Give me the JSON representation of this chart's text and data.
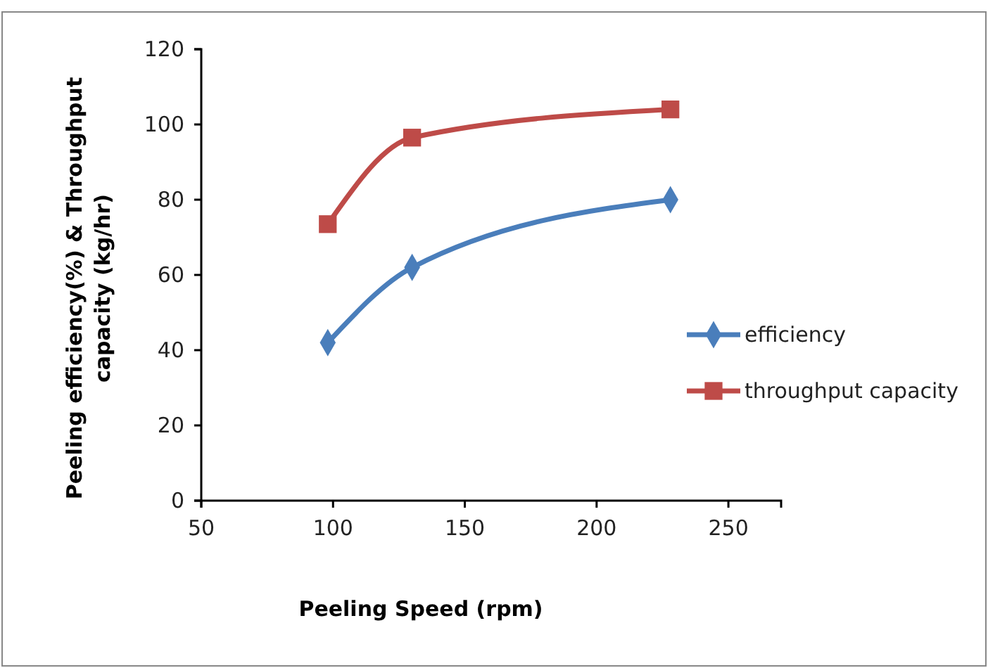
{
  "chart_data": {
    "type": "line",
    "xlabel": "Peeling Speed (rpm)",
    "ylabel": "Peeling efficiency(%) & Throughput capacity (kg/hr)",
    "x": [
      98,
      130,
      228
    ],
    "xlim": [
      50,
      270
    ],
    "xticks": [
      50,
      100,
      150,
      200,
      250
    ],
    "ylim": [
      0,
      120
    ],
    "yticks": [
      0,
      20,
      40,
      60,
      80,
      100,
      120
    ],
    "grid": false,
    "legend": "right",
    "series": [
      {
        "name": "efficiency",
        "color": "#4a7ebb",
        "marker": "diamond",
        "values": [
          42,
          62,
          80
        ]
      },
      {
        "name": "throughput capacity",
        "color": "#be4b48",
        "marker": "square",
        "values": [
          73.5,
          96.5,
          104
        ]
      }
    ]
  }
}
